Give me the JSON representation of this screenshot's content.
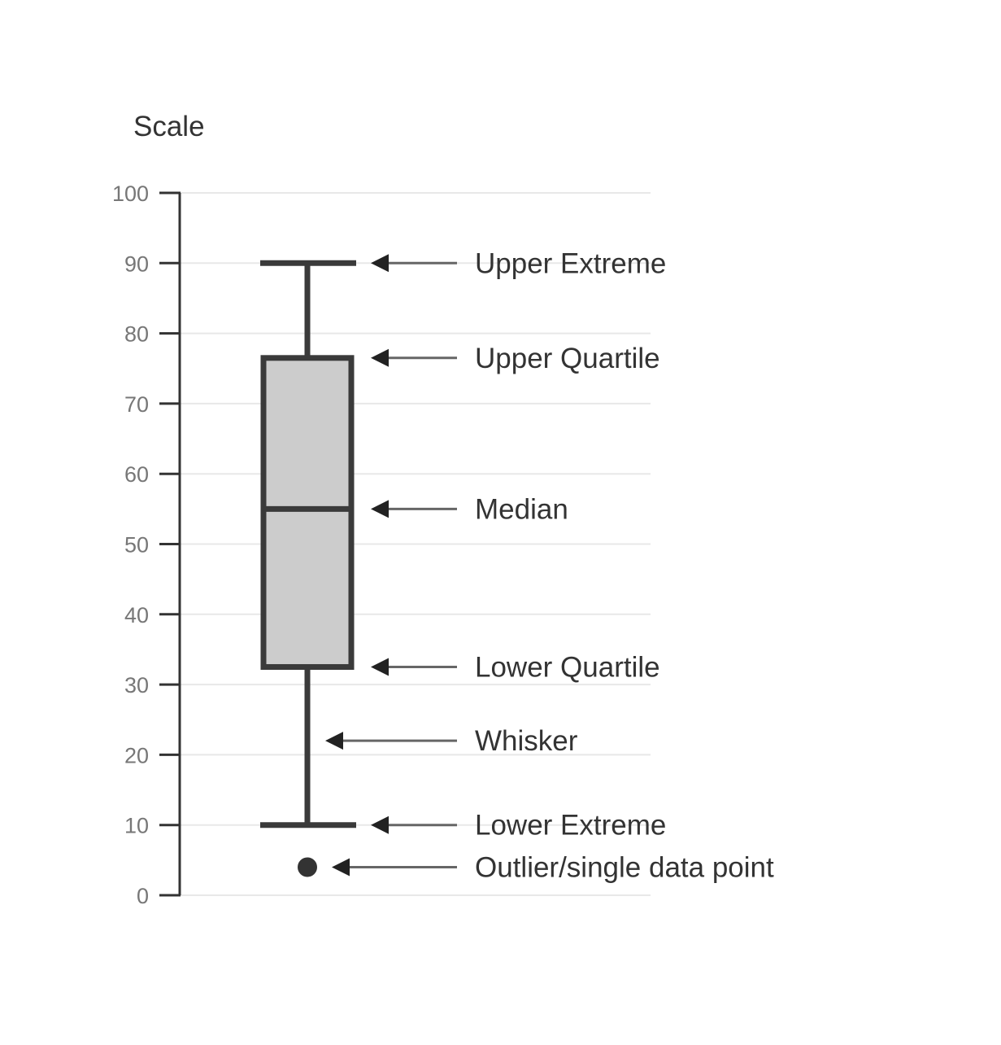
{
  "chart_data": {
    "type": "boxplot",
    "ylabel": "Scale",
    "ylim": [
      0,
      100
    ],
    "yticks": [
      0,
      10,
      20,
      30,
      40,
      50,
      60,
      70,
      80,
      90,
      100
    ],
    "grid": true,
    "box": {
      "lower_extreme": 10,
      "lower_quartile": 32.5,
      "median": 55,
      "upper_quartile": 76.5,
      "upper_extreme": 90,
      "outlier": 4
    },
    "annotations": [
      {
        "label": "Upper Extreme",
        "value": 90
      },
      {
        "label": "Upper Quartile",
        "value": 76.5
      },
      {
        "label": "Median",
        "value": 55
      },
      {
        "label": "Lower Quartile",
        "value": 32.5
      },
      {
        "label": "Whisker",
        "value": 22
      },
      {
        "label": "Lower Extreme",
        "value": 10
      },
      {
        "label": "Outlier/single data point",
        "value": 4
      }
    ]
  }
}
